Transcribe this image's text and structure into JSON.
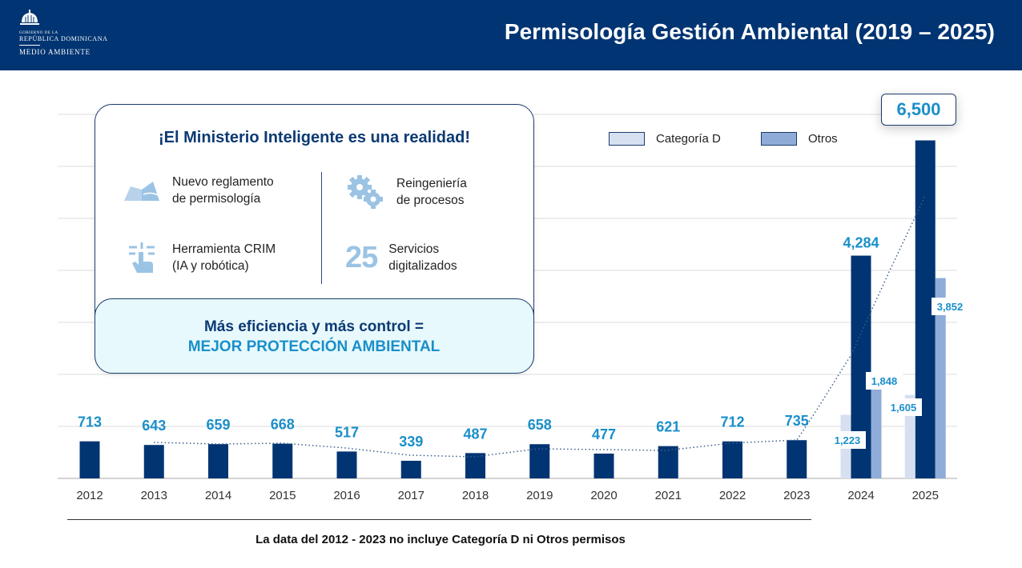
{
  "header": {
    "logo": {
      "line1": "GOBIERNO DE LA",
      "line2": "REPÚBLICA DOMINICANA",
      "line3": "MEDIO AMBIENTE"
    },
    "title": "Permisología Gestión Ambiental (2019 – 2025)"
  },
  "card": {
    "title": "¡El Ministerio Inteligente es una realidad!",
    "items": [
      {
        "icon": "open-book-icon",
        "line1": "Nuevo reglamento",
        "line2": "de permisología"
      },
      {
        "icon": "gears-icon",
        "line1": "Reingeniería",
        "line2": "de procesos"
      },
      {
        "icon": "touch-circuit-icon",
        "line1": "Herramienta CRIM",
        "line2": "(IA y robótica)"
      },
      {
        "icon": "number-25",
        "number": "25",
        "line1": "Servicios",
        "line2": "digitalizados"
      }
    ],
    "footer_line1": "Más eficiencia y más control =",
    "footer_line2": "MEJOR PROTECCIÓN AMBIENTAL"
  },
  "note": "La data del 2012 - 2023 no incluye Categoría D ni Otros permisos",
  "colors": {
    "header": "#003472",
    "main": "#003472",
    "categoria_d": "#d6e0f0",
    "otros": "#8facd9",
    "label": "#1a8fca"
  },
  "chart_data": {
    "type": "bar",
    "categories": [
      "2012",
      "2013",
      "2014",
      "2015",
      "2016",
      "2017",
      "2018",
      "2019",
      "2020",
      "2021",
      "2022",
      "2023",
      "2024",
      "2025"
    ],
    "series": [
      {
        "key": "main",
        "values": [
          713,
          643,
          659,
          668,
          517,
          339,
          487,
          658,
          477,
          621,
          712,
          735,
          4284,
          6500
        ],
        "labels": [
          "713",
          "643",
          "659",
          "668",
          "517",
          "339",
          "487",
          "658",
          "477",
          "621",
          "712",
          "735",
          "4,284",
          "6,500"
        ]
      },
      {
        "key": "categoria_d",
        "name": "Categoría D",
        "values": [
          null,
          null,
          null,
          null,
          null,
          null,
          null,
          null,
          null,
          null,
          null,
          null,
          1223,
          1605
        ],
        "labels": {
          "2024": "1,223",
          "2025": "1,605"
        }
      },
      {
        "key": "otros",
        "name": "Otros",
        "values": [
          null,
          null,
          null,
          null,
          null,
          null,
          null,
          null,
          null,
          null,
          null,
          null,
          1848,
          3852
        ],
        "labels": {
          "2024": "1,848",
          "2025": "3,852"
        }
      }
    ],
    "ylim": [
      0,
      7000
    ],
    "grid": true,
    "legend": "top-right",
    "trendline": "dotted"
  }
}
